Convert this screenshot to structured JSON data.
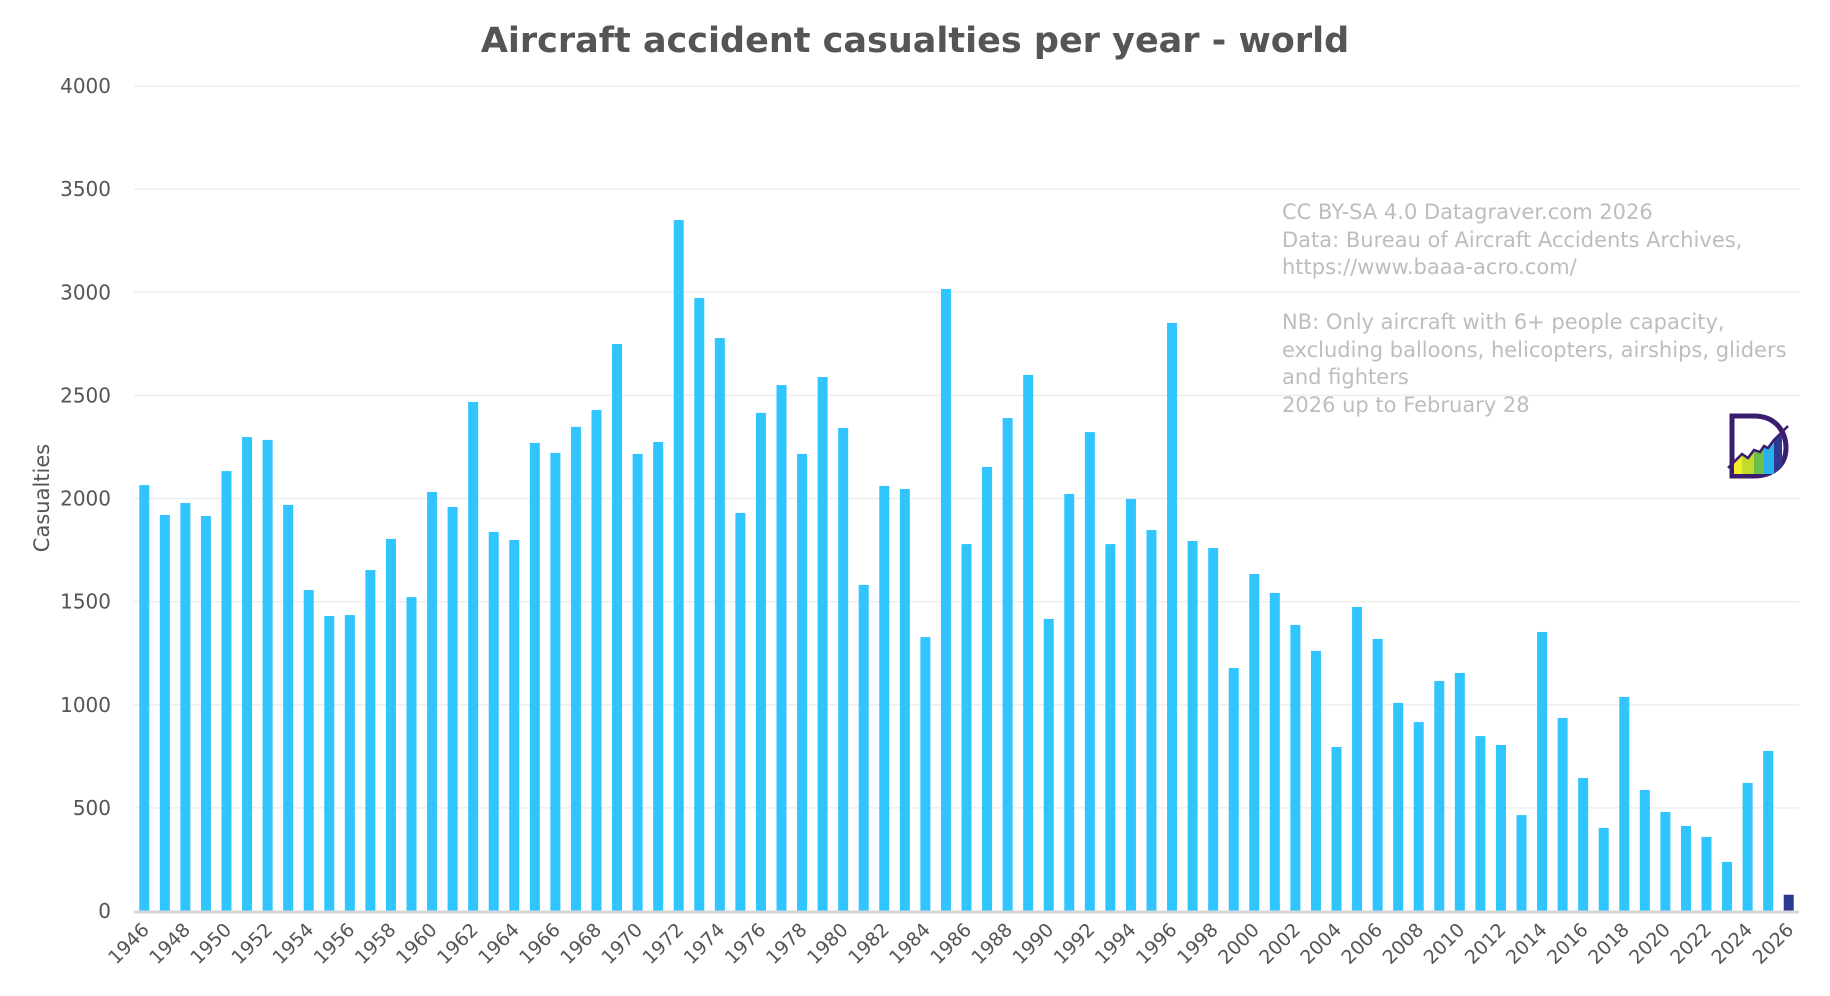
{
  "chart_data": {
    "type": "bar",
    "title": "Aircraft accident casualties per year - world",
    "xlabel": "",
    "ylabel": "Casualties",
    "ylim": [
      0,
      4000
    ],
    "yticks": [
      0,
      500,
      1000,
      1500,
      2000,
      2500,
      3000,
      3500,
      4000
    ],
    "grid": true,
    "legend": "none",
    "categories": [
      "1946",
      "1947",
      "1948",
      "1949",
      "1950",
      "1951",
      "1952",
      "1953",
      "1954",
      "1955",
      "1956",
      "1957",
      "1958",
      "1959",
      "1960",
      "1961",
      "1962",
      "1963",
      "1964",
      "1965",
      "1966",
      "1967",
      "1968",
      "1969",
      "1970",
      "1971",
      "1972",
      "1973",
      "1974",
      "1975",
      "1976",
      "1977",
      "1978",
      "1979",
      "1980",
      "1981",
      "1982",
      "1983",
      "1984",
      "1985",
      "1986",
      "1987",
      "1988",
      "1989",
      "1990",
      "1991",
      "1992",
      "1993",
      "1994",
      "1995",
      "1996",
      "1997",
      "1998",
      "1999",
      "2000",
      "2001",
      "2002",
      "2003",
      "2004",
      "2005",
      "2006",
      "2007",
      "2008",
      "2009",
      "2010",
      "2011",
      "2012",
      "2013",
      "2014",
      "2015",
      "2016",
      "2017",
      "2018",
      "2019",
      "2020",
      "2021",
      "2022",
      "2023",
      "2024",
      "2025",
      "2026"
    ],
    "xtick_labels": [
      "1946",
      "1948",
      "1950",
      "1952",
      "1954",
      "1956",
      "1958",
      "1960",
      "1962",
      "1964",
      "1966",
      "1968",
      "1970",
      "1972",
      "1974",
      "1976",
      "1978",
      "1980",
      "1982",
      "1984",
      "1986",
      "1988",
      "1990",
      "1992",
      "1994",
      "1996",
      "1998",
      "2000",
      "2002",
      "2004",
      "2006",
      "2008",
      "2010",
      "2012",
      "2014",
      "2016",
      "2018",
      "2020",
      "2022",
      "2024",
      "2026"
    ],
    "values": [
      2065,
      1920,
      1978,
      1915,
      2133,
      2298,
      2284,
      1969,
      1556,
      1430,
      1435,
      1653,
      1804,
      1522,
      2032,
      1959,
      2468,
      1838,
      1799,
      2269,
      2221,
      2347,
      2429,
      2749,
      2216,
      2274,
      3350,
      2972,
      2778,
      1930,
      2415,
      2550,
      2216,
      2589,
      2342,
      1581,
      2061,
      2046,
      1328,
      3016,
      1779,
      2153,
      2390,
      2599,
      1416,
      2022,
      2322,
      1779,
      1998,
      1847,
      2851,
      1794,
      1760,
      1178,
      1634,
      1542,
      1387,
      1261,
      795,
      1474,
      1319,
      1009,
      916,
      1115,
      1154,
      848,
      805,
      465,
      1353,
      936,
      645,
      403,
      1038,
      587,
      480,
      412,
      359,
      238,
      621,
      776,
      79
    ],
    "colors": {
      "bar": "#30c5fe",
      "highlight_bar": "#2b3990",
      "highlight_category": "2026"
    },
    "annotations": [
      "CC BY-SA 4.0 Datagraver.com 2026",
      "Data: Bureau of Aircraft Accidents Archives,",
      "https://www.baaa-acro.com/",
      "",
      "NB: Only aircraft with 6+ people capacity,",
      "excluding balloons, helicopters, airships, gliders",
      "and fighters",
      "2026 up to February 28"
    ]
  },
  "logo": {
    "icon": "datagraver-logo-icon"
  }
}
